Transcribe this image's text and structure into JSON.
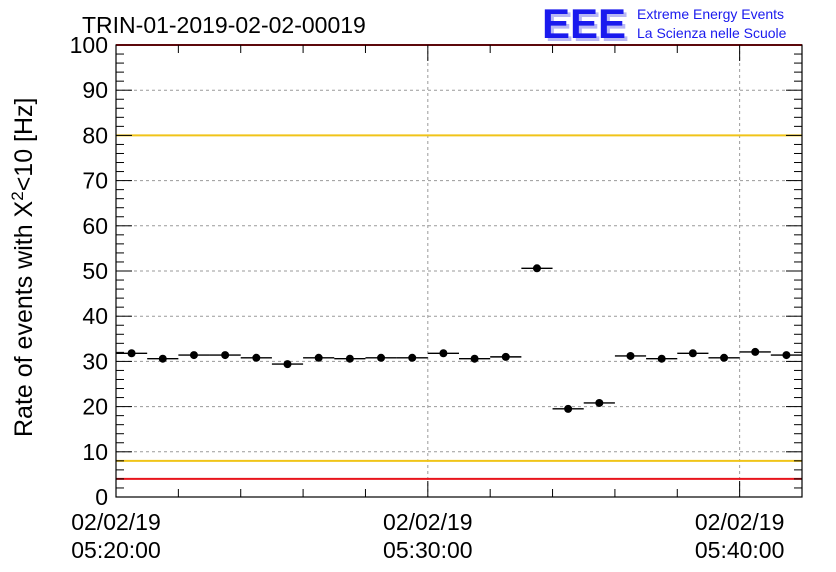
{
  "chart_data": {
    "type": "scatter",
    "title": "TRIN-01-2019-02-02-00019",
    "ylabel_main": "Rate of events with X",
    "ylabel_sup": "2",
    "ylabel_tail": "<10 [Hz]",
    "xlabel": "",
    "ylim": [
      0,
      100
    ],
    "yticks": [
      0,
      10,
      20,
      30,
      40,
      50,
      60,
      70,
      80,
      90,
      100
    ],
    "xlim_minutes": [
      0,
      22
    ],
    "xticks": [
      {
        "t": 0,
        "date": "02/02/19",
        "time": "05:20:00"
      },
      {
        "t": 10,
        "date": "02/02/19",
        "time": "05:30:00"
      },
      {
        "t": 20,
        "date": "02/02/19",
        "time": "05:40:00"
      }
    ],
    "grid": true,
    "points": [
      {
        "t": 0.5,
        "value": 31.8
      },
      {
        "t": 1.5,
        "value": 30.6
      },
      {
        "t": 2.5,
        "value": 31.4
      },
      {
        "t": 3.5,
        "value": 31.4
      },
      {
        "t": 4.5,
        "value": 30.8
      },
      {
        "t": 5.5,
        "value": 29.4
      },
      {
        "t": 6.5,
        "value": 30.8
      },
      {
        "t": 7.5,
        "value": 30.6
      },
      {
        "t": 8.5,
        "value": 30.8
      },
      {
        "t": 9.5,
        "value": 30.8
      },
      {
        "t": 10.5,
        "value": 31.8
      },
      {
        "t": 11.5,
        "value": 30.6
      },
      {
        "t": 12.5,
        "value": 31.0
      },
      {
        "t": 13.5,
        "value": 50.6
      },
      {
        "t": 14.5,
        "value": 19.5
      },
      {
        "t": 15.5,
        "value": 20.8
      },
      {
        "t": 16.5,
        "value": 31.2
      },
      {
        "t": 17.5,
        "value": 30.6
      },
      {
        "t": 18.5,
        "value": 31.8
      },
      {
        "t": 19.5,
        "value": 30.8
      },
      {
        "t": 20.5,
        "value": 32.1
      },
      {
        "t": 21.5,
        "value": 31.4
      }
    ],
    "reference_lines": [
      {
        "value": 100,
        "color": "#e8141c"
      },
      {
        "value": 80,
        "color": "#f0c419"
      },
      {
        "value": 8,
        "color": "#f0c419"
      },
      {
        "value": 4,
        "color": "#e8141c"
      }
    ]
  },
  "logo": {
    "text": "EEE",
    "line1": "Extreme Energy Events",
    "line2": "La Scienza nelle Scuole",
    "color": "#1a1aee"
  }
}
